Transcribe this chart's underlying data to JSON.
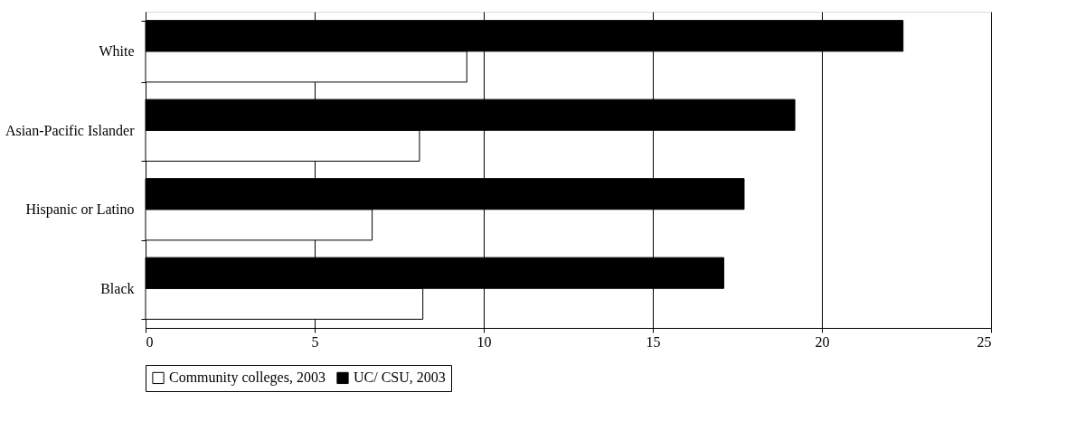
{
  "chart_data": {
    "type": "bar",
    "orientation": "horizontal",
    "categories": [
      "White",
      "Asian-Pacific Islander",
      "Hispanic or Latino",
      "Black"
    ],
    "series": [
      {
        "name": "Community colleges, 2003",
        "color": "#ffffff",
        "values": [
          9.5,
          8.1,
          6.7,
          8.2
        ]
      },
      {
        "name": "UC/ CSU, 2003",
        "color": "#000000",
        "values": [
          22.4,
          19.2,
          17.7,
          17.1
        ]
      }
    ],
    "xlim": [
      0,
      25
    ],
    "xticks": [
      0,
      5,
      10,
      15,
      20,
      25
    ],
    "grid": "x",
    "legend": "bottom"
  }
}
